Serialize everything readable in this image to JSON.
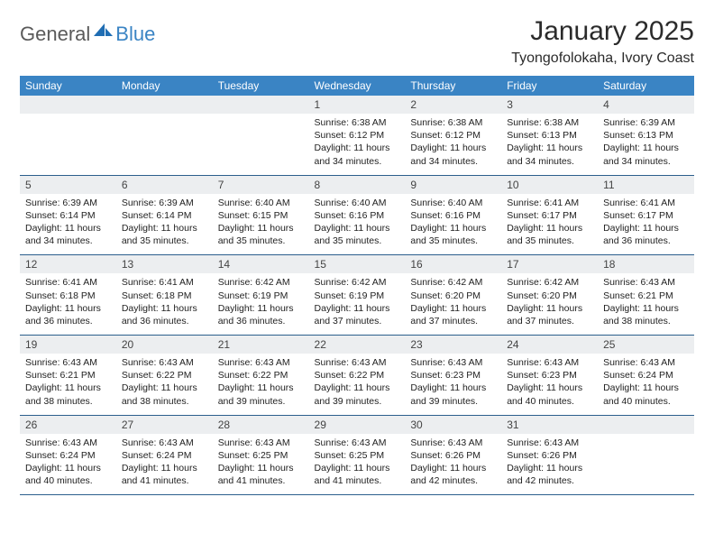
{
  "brand": {
    "word1": "General",
    "word2": "Blue"
  },
  "title": "January 2025",
  "location": "Tyongofolokaha, Ivory Coast",
  "colors": {
    "header_bg": "#3a84c4",
    "header_text": "#ffffff",
    "daynum_bg": "#eceef0",
    "rule": "#2c5f8d",
    "logo_gray": "#5a5a5a",
    "logo_blue": "#3a84c4"
  },
  "day_headers": [
    "Sunday",
    "Monday",
    "Tuesday",
    "Wednesday",
    "Thursday",
    "Friday",
    "Saturday"
  ],
  "weeks": [
    [
      null,
      null,
      null,
      {
        "n": "1",
        "sr": "6:38 AM",
        "ss": "6:12 PM",
        "dl": "11 hours and 34 minutes."
      },
      {
        "n": "2",
        "sr": "6:38 AM",
        "ss": "6:12 PM",
        "dl": "11 hours and 34 minutes."
      },
      {
        "n": "3",
        "sr": "6:38 AM",
        "ss": "6:13 PM",
        "dl": "11 hours and 34 minutes."
      },
      {
        "n": "4",
        "sr": "6:39 AM",
        "ss": "6:13 PM",
        "dl": "11 hours and 34 minutes."
      }
    ],
    [
      {
        "n": "5",
        "sr": "6:39 AM",
        "ss": "6:14 PM",
        "dl": "11 hours and 34 minutes."
      },
      {
        "n": "6",
        "sr": "6:39 AM",
        "ss": "6:14 PM",
        "dl": "11 hours and 35 minutes."
      },
      {
        "n": "7",
        "sr": "6:40 AM",
        "ss": "6:15 PM",
        "dl": "11 hours and 35 minutes."
      },
      {
        "n": "8",
        "sr": "6:40 AM",
        "ss": "6:16 PM",
        "dl": "11 hours and 35 minutes."
      },
      {
        "n": "9",
        "sr": "6:40 AM",
        "ss": "6:16 PM",
        "dl": "11 hours and 35 minutes."
      },
      {
        "n": "10",
        "sr": "6:41 AM",
        "ss": "6:17 PM",
        "dl": "11 hours and 35 minutes."
      },
      {
        "n": "11",
        "sr": "6:41 AM",
        "ss": "6:17 PM",
        "dl": "11 hours and 36 minutes."
      }
    ],
    [
      {
        "n": "12",
        "sr": "6:41 AM",
        "ss": "6:18 PM",
        "dl": "11 hours and 36 minutes."
      },
      {
        "n": "13",
        "sr": "6:41 AM",
        "ss": "6:18 PM",
        "dl": "11 hours and 36 minutes."
      },
      {
        "n": "14",
        "sr": "6:42 AM",
        "ss": "6:19 PM",
        "dl": "11 hours and 36 minutes."
      },
      {
        "n": "15",
        "sr": "6:42 AM",
        "ss": "6:19 PM",
        "dl": "11 hours and 37 minutes."
      },
      {
        "n": "16",
        "sr": "6:42 AM",
        "ss": "6:20 PM",
        "dl": "11 hours and 37 minutes."
      },
      {
        "n": "17",
        "sr": "6:42 AM",
        "ss": "6:20 PM",
        "dl": "11 hours and 37 minutes."
      },
      {
        "n": "18",
        "sr": "6:43 AM",
        "ss": "6:21 PM",
        "dl": "11 hours and 38 minutes."
      }
    ],
    [
      {
        "n": "19",
        "sr": "6:43 AM",
        "ss": "6:21 PM",
        "dl": "11 hours and 38 minutes."
      },
      {
        "n": "20",
        "sr": "6:43 AM",
        "ss": "6:22 PM",
        "dl": "11 hours and 38 minutes."
      },
      {
        "n": "21",
        "sr": "6:43 AM",
        "ss": "6:22 PM",
        "dl": "11 hours and 39 minutes."
      },
      {
        "n": "22",
        "sr": "6:43 AM",
        "ss": "6:22 PM",
        "dl": "11 hours and 39 minutes."
      },
      {
        "n": "23",
        "sr": "6:43 AM",
        "ss": "6:23 PM",
        "dl": "11 hours and 39 minutes."
      },
      {
        "n": "24",
        "sr": "6:43 AM",
        "ss": "6:23 PM",
        "dl": "11 hours and 40 minutes."
      },
      {
        "n": "25",
        "sr": "6:43 AM",
        "ss": "6:24 PM",
        "dl": "11 hours and 40 minutes."
      }
    ],
    [
      {
        "n": "26",
        "sr": "6:43 AM",
        "ss": "6:24 PM",
        "dl": "11 hours and 40 minutes."
      },
      {
        "n": "27",
        "sr": "6:43 AM",
        "ss": "6:24 PM",
        "dl": "11 hours and 41 minutes."
      },
      {
        "n": "28",
        "sr": "6:43 AM",
        "ss": "6:25 PM",
        "dl": "11 hours and 41 minutes."
      },
      {
        "n": "29",
        "sr": "6:43 AM",
        "ss": "6:25 PM",
        "dl": "11 hours and 41 minutes."
      },
      {
        "n": "30",
        "sr": "6:43 AM",
        "ss": "6:26 PM",
        "dl": "11 hours and 42 minutes."
      },
      {
        "n": "31",
        "sr": "6:43 AM",
        "ss": "6:26 PM",
        "dl": "11 hours and 42 minutes."
      },
      null
    ]
  ],
  "labels": {
    "sunrise": "Sunrise: ",
    "sunset": "Sunset: ",
    "daylight": "Daylight: "
  }
}
